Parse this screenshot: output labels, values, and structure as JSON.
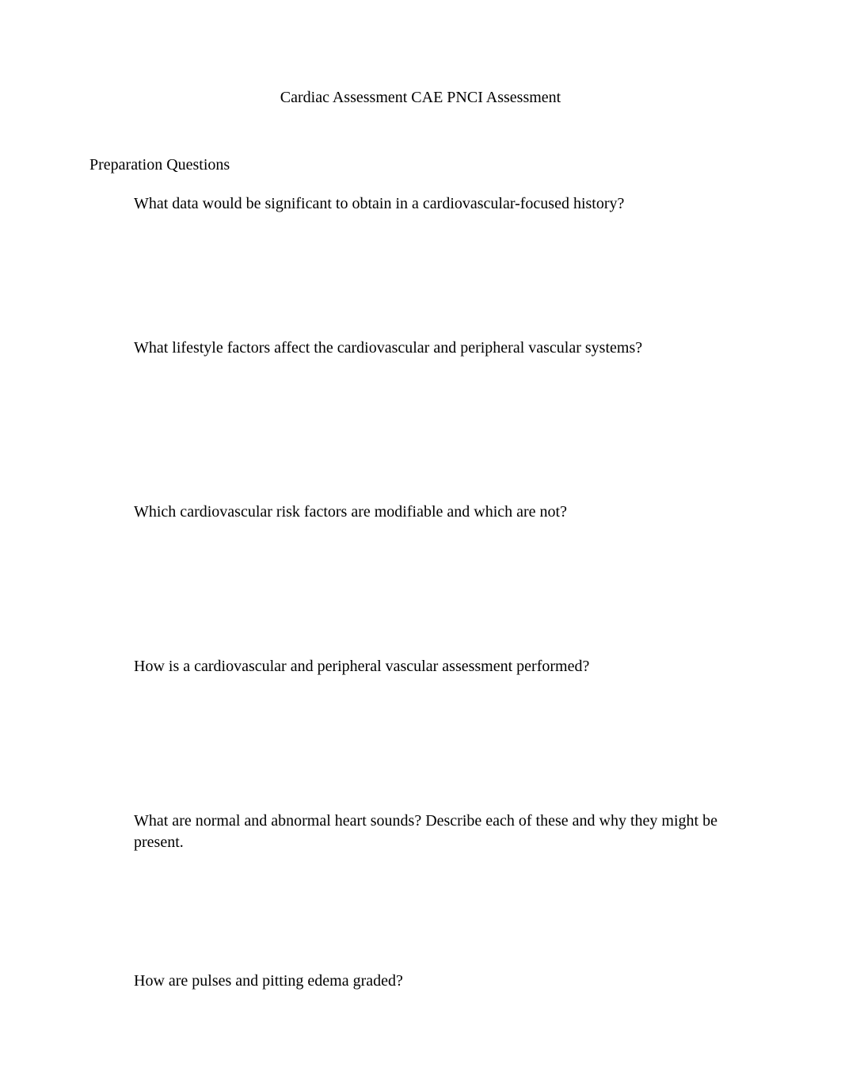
{
  "document": {
    "title": "Cardiac Assessment CAE PNCI Assessment",
    "section_heading": "Preparation Questions",
    "bullet_glyph": "",
    "questions": [
      "What data would be significant to obtain in a cardiovascular-focused history?",
      "What lifestyle factors affect the cardiovascular and peripheral vascular systems?",
      "Which cardiovascular risk factors are modifiable and which are not?",
      "How is a cardiovascular and peripheral vascular assessment performed?",
      "What are normal and abnormal heart sounds?  Describe each of these and why they might be present.",
      "How are pulses and pitting edema graded?"
    ],
    "typography": {
      "body_font": "Times New Roman",
      "body_fontsize_pt": 15,
      "body_color": "#000000",
      "background_color": "#ffffff",
      "bullet_color": "#333333",
      "bullet_opacity": 0.55
    }
  }
}
